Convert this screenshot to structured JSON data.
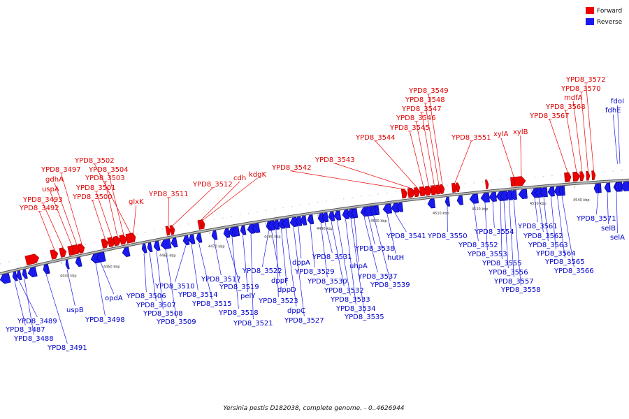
{
  "title": "Yersinia pestis D182038, complete genome. - 0..4626944",
  "colors": {
    "forward": "#ee0000",
    "reverse": "#1a1aee",
    "backbone": "#888888"
  },
  "legend": [
    {
      "label": "Forward",
      "color": "#ee0000"
    },
    {
      "label": "Reverse",
      "color": "#1a1aee"
    }
  ],
  "ticks": [
    "4440 kbp",
    "4450 kbp",
    "4460 kbp",
    "4470 kbp",
    "4480 kbp",
    "4490 kbp",
    "4500 kbp",
    "4510 kbp",
    "4520 kbp",
    "4530 kbp",
    "4540 kbp"
  ],
  "forward_genes": [
    "YPD8_3492",
    "YPD8_3493",
    "uspA",
    "gdhA",
    "YPD8_3497",
    "YPD8_3500",
    "YPD8_3501",
    "YPD8_3503",
    "YPD8_3504",
    "YPD8_3502",
    "glxK",
    "YPD8_3511",
    "YPD8_3512",
    "cdh",
    "kdgK",
    "YPD8_3542",
    "YPD8_3543",
    "YPD8_3544",
    "YPD8_3545",
    "YPD8_3546",
    "YPD8_3547",
    "YPD8_3548",
    "YPD8_3549",
    "YPD8_3551",
    "xylA",
    "xylB",
    "YPD8_3567",
    "YPD8_3568",
    "mdfA",
    "YPD8_3570",
    "YPD8_3572"
  ],
  "reverse_genes": [
    "YPD8_3489",
    "YPD8_3487",
    "YPD8_3488",
    "YPD8_3491",
    "uspB",
    "YPD8_3498",
    "opdA",
    "YPD8_3506",
    "YPD8_3507",
    "YPD8_3508",
    "YPD8_3509",
    "YPD8_3510",
    "YPD8_3514",
    "YPD8_3515",
    "YPD8_3517",
    "YPD8_3519",
    "YPD8_3518",
    "pelY",
    "YPD8_3521",
    "YPD8_3522",
    "dppF",
    "YPD8_3523",
    "dppD",
    "dppC",
    "YPD8_3527",
    "dppA",
    "YPD8_3529",
    "YPD8_3530",
    "YPD8_3531",
    "YPD8_3532",
    "YPD8_3533",
    "YPD8_3534",
    "YPD8_3535",
    "uhpA",
    "YPD8_3537",
    "YPD8_3538",
    "YPD8_3539",
    "hutH",
    "YPD8_3541",
    "YPD8_3550",
    "YPD8_3552",
    "YPD8_3553",
    "YPD8_3554",
    "YPD8_3555",
    "YPD8_3556",
    "YPD8_3557",
    "YPD8_3558",
    "YPD8_3561",
    "YPD8_3562",
    "YPD8_3563",
    "YPD8_3564",
    "YPD8_3565",
    "YPD8_3566",
    "YPD8_3571",
    "selB",
    "selA",
    "fdhE",
    "fdoI"
  ]
}
